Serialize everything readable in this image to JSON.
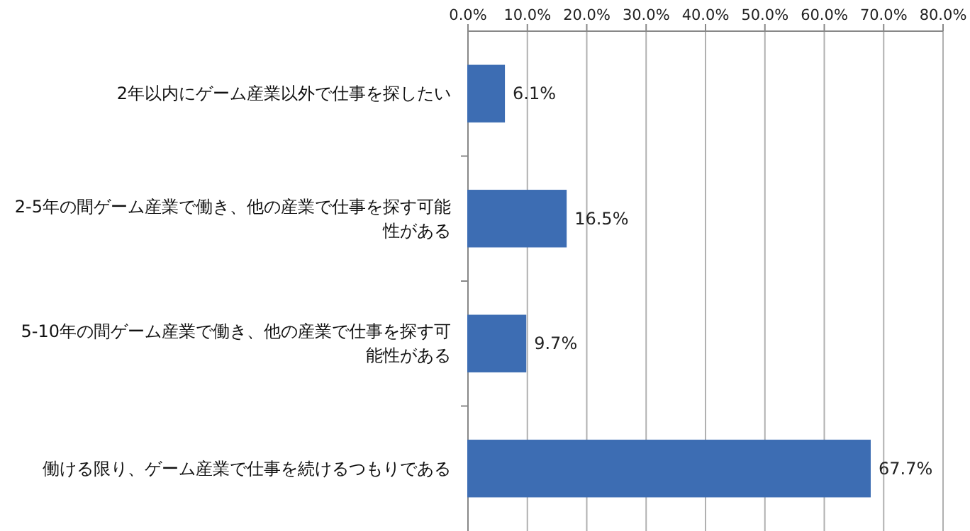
{
  "chart_data": {
    "type": "bar",
    "orientation": "horizontal",
    "categories": [
      "2年以内にゲーム産業以外で仕事を探したい",
      "2-5年の間ゲーム産業で働き、他の産業で仕事を探す可能性がある",
      "5-10年の間ゲーム産業で働き、他の産業で仕事を探す可能性がある",
      "働ける限り、ゲーム産業で仕事を続けるつもりである"
    ],
    "values": [
      6.1,
      16.5,
      9.7,
      67.7
    ],
    "value_labels": [
      "6.1%",
      "16.5%",
      "9.7%",
      "67.7%"
    ],
    "color": "#3d6db3",
    "xlim": [
      0,
      80
    ],
    "xticks": [
      {
        "value": 0,
        "label": "0.0%"
      },
      {
        "value": 10,
        "label": "10.0%"
      },
      {
        "value": 20,
        "label": "20.0%"
      },
      {
        "value": 30,
        "label": "30.0%"
      },
      {
        "value": 40,
        "label": "40.0%"
      },
      {
        "value": 50,
        "label": "50.0%"
      },
      {
        "value": 60,
        "label": "60.0%"
      },
      {
        "value": 70,
        "label": "70.0%"
      },
      {
        "value": 80,
        "label": "80.0%"
      }
    ],
    "grid": "x"
  }
}
